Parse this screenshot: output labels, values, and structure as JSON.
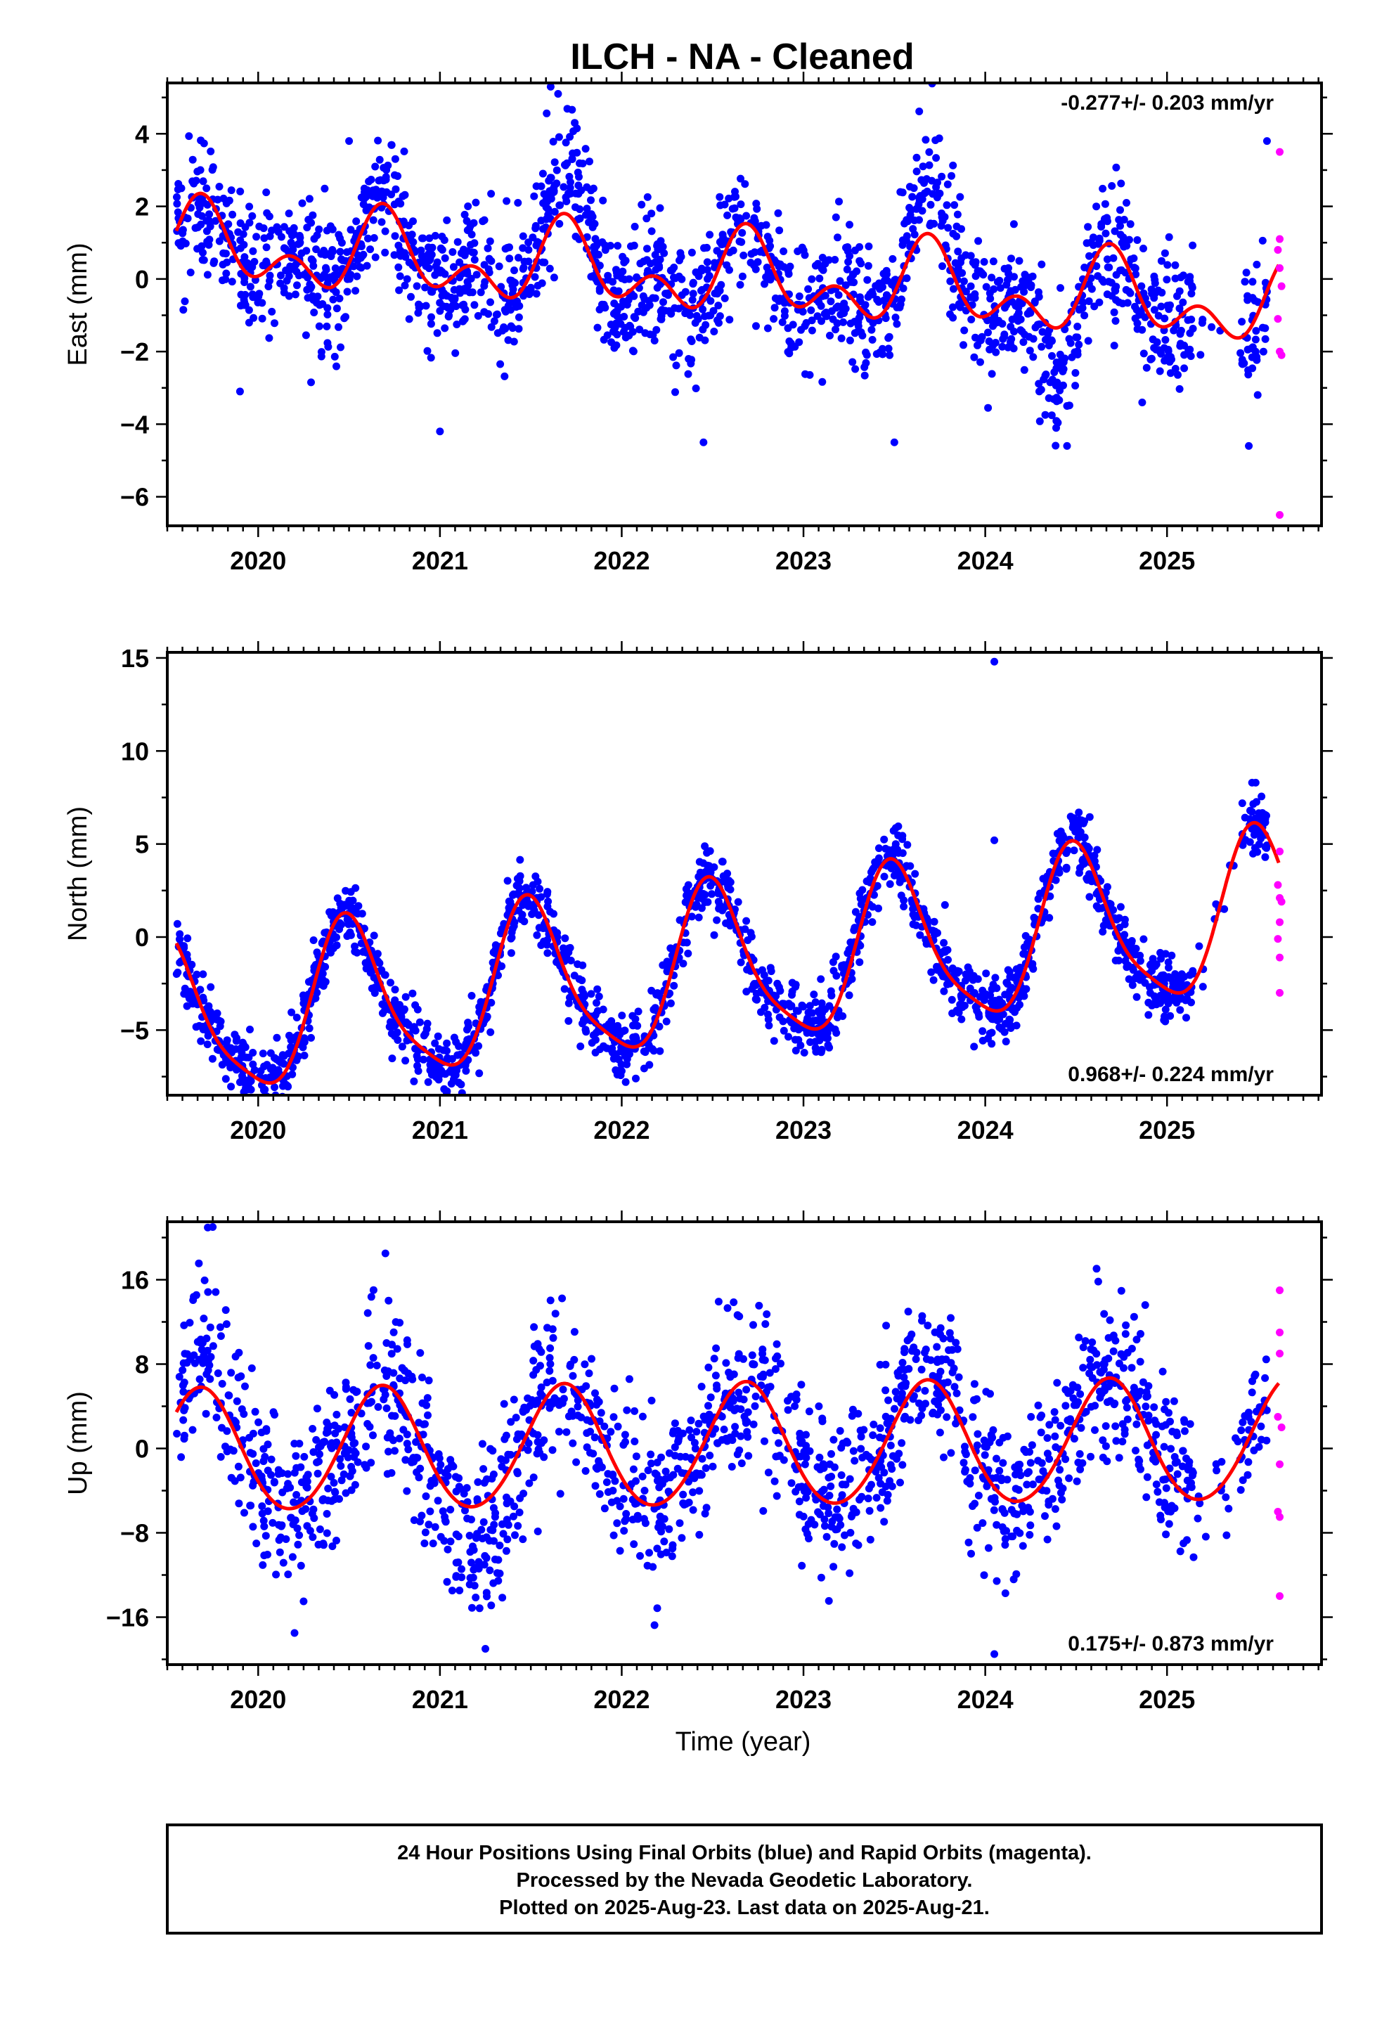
{
  "title": "ILCH  - NA - Cleaned",
  "xlabel": "Time (year)",
  "colors": {
    "final": "#0000ff",
    "rapid": "#ff00ff",
    "model": "#ff0000",
    "frame": "#000000"
  },
  "footer": {
    "line1": "24 Hour Positions Using Final Orbits (blue) and Rapid Orbits (magenta).",
    "line2": "Processed by the Nevada Geodetic Laboratory.",
    "line3": "Plotted on 2025-Aug-23. Last data on 2025-Aug-21."
  },
  "chart_data": [
    {
      "type": "scatter",
      "component": "east",
      "ylabel": "East (mm)",
      "rate": "-0.277+/- 0.203 mm/yr",
      "rate_position": "top-right",
      "xlim": [
        2019.5,
        2025.85
      ],
      "ylim": [
        -6.8,
        5.4
      ],
      "xticks": [
        2020,
        2021,
        2022,
        2023,
        2024,
        2025
      ],
      "yticks": [
        -6,
        -4,
        -2,
        0,
        2,
        4
      ],
      "grid": false,
      "model": {
        "trend": -0.277,
        "offset": 0.9,
        "annual_amp": 0.8,
        "annual_peak": 0.7,
        "semiannual_amp": 0.7,
        "semiannual_peak": 0.18
      },
      "scatter": {
        "x_start": 2019.55,
        "x_end": 2025.55,
        "x_gap": [
          2025.15,
          2025.4
        ],
        "count": 1900,
        "noise_sd": 0.9,
        "bumps": [
          [
            2021.7,
            1.6
          ],
          [
            2023.7,
            1.7
          ],
          [
            2024.4,
            -1.5
          ]
        ]
      },
      "outliers": [
        [
          2021.65,
          5.1
        ],
        [
          2021.0,
          -4.2
        ],
        [
          2022.45,
          -4.5
        ],
        [
          2023.5,
          -4.5
        ],
        [
          2024.45,
          -4.6
        ],
        [
          2025.45,
          -4.6
        ],
        [
          2019.9,
          -3.1
        ],
        [
          2020.5,
          3.8
        ],
        [
          2025.55,
          3.8
        ]
      ],
      "rapid_points": [
        [
          2025.62,
          3.5
        ],
        [
          2025.62,
          1.1
        ],
        [
          2025.61,
          0.8
        ],
        [
          2025.62,
          0.3
        ],
        [
          2025.63,
          -0.2
        ],
        [
          2025.61,
          -1.1
        ],
        [
          2025.62,
          -2.0
        ],
        [
          2025.63,
          -2.1
        ],
        [
          2025.62,
          -6.5
        ]
      ]
    },
    {
      "type": "scatter",
      "component": "north",
      "ylabel": "North (mm)",
      "rate": "0.968+/- 0.224 mm/yr",
      "rate_position": "bottom-right",
      "xlim": [
        2019.5,
        2025.85
      ],
      "ylim": [
        -8.5,
        15.3
      ],
      "xticks": [
        2020,
        2021,
        2022,
        2023,
        2024,
        2025
      ],
      "yticks": [
        -5,
        0,
        5,
        10,
        15
      ],
      "grid": false,
      "model": {
        "trend": 0.968,
        "offset": -4.6,
        "annual_amp": 4.2,
        "annual_peak": 0.5,
        "semiannual_amp": 0.9,
        "semiannual_peak": 0.45
      },
      "scatter": {
        "x_start": 2019.55,
        "x_end": 2025.55,
        "x_gap": [
          2025.15,
          2025.4
        ],
        "count": 1900,
        "noise_sd": 0.9,
        "bumps": []
      },
      "outliers": [
        [
          2024.05,
          14.8
        ],
        [
          2024.05,
          5.2
        ],
        [
          2019.9,
          -7.8
        ],
        [
          2022.0,
          -7.2
        ]
      ],
      "rapid_points": [
        [
          2025.62,
          4.6
        ],
        [
          2025.61,
          2.8
        ],
        [
          2025.62,
          2.1
        ],
        [
          2025.63,
          1.9
        ],
        [
          2025.62,
          0.8
        ],
        [
          2025.61,
          -0.1
        ],
        [
          2025.62,
          -1.1
        ],
        [
          2025.62,
          -3.0
        ]
      ]
    },
    {
      "type": "scatter",
      "component": "up",
      "ylabel": "Up (mm)",
      "rate": "0.175+/- 0.873 mm/yr",
      "rate_position": "bottom-right",
      "xlim": [
        2019.5,
        2025.85
      ],
      "ylim": [
        -20.5,
        21.5
      ],
      "xticks": [
        2020,
        2021,
        2022,
        2023,
        2024,
        2025
      ],
      "yticks": [
        -16,
        -8,
        0,
        8,
        16
      ],
      "grid": false,
      "model": {
        "trend": 0.175,
        "offset": -0.4,
        "annual_amp": 5.8,
        "annual_peak": 0.68,
        "semiannual_amp": 0.4,
        "semiannual_peak": 0.2
      },
      "scatter": {
        "x_start": 2019.55,
        "x_end": 2025.55,
        "x_gap": [
          2025.15,
          2025.4
        ],
        "count": 1700,
        "noise_sd": 3.8,
        "bumps": [
          [
            2019.7,
            4.0
          ],
          [
            2021.2,
            -4.0
          ]
        ]
      },
      "outliers": [
        [
          2019.75,
          21.0
        ],
        [
          2020.7,
          18.5
        ],
        [
          2024.05,
          -19.5
        ],
        [
          2021.25,
          -19.0
        ],
        [
          2020.2,
          -17.5
        ]
      ],
      "rapid_points": [
        [
          2025.62,
          15.0
        ],
        [
          2025.62,
          11.0
        ],
        [
          2025.62,
          9.0
        ],
        [
          2025.61,
          3.0
        ],
        [
          2025.63,
          2.0
        ],
        [
          2025.62,
          -1.5
        ],
        [
          2025.61,
          -6.0
        ],
        [
          2025.62,
          -6.5
        ],
        [
          2025.62,
          -14.0
        ]
      ]
    }
  ]
}
